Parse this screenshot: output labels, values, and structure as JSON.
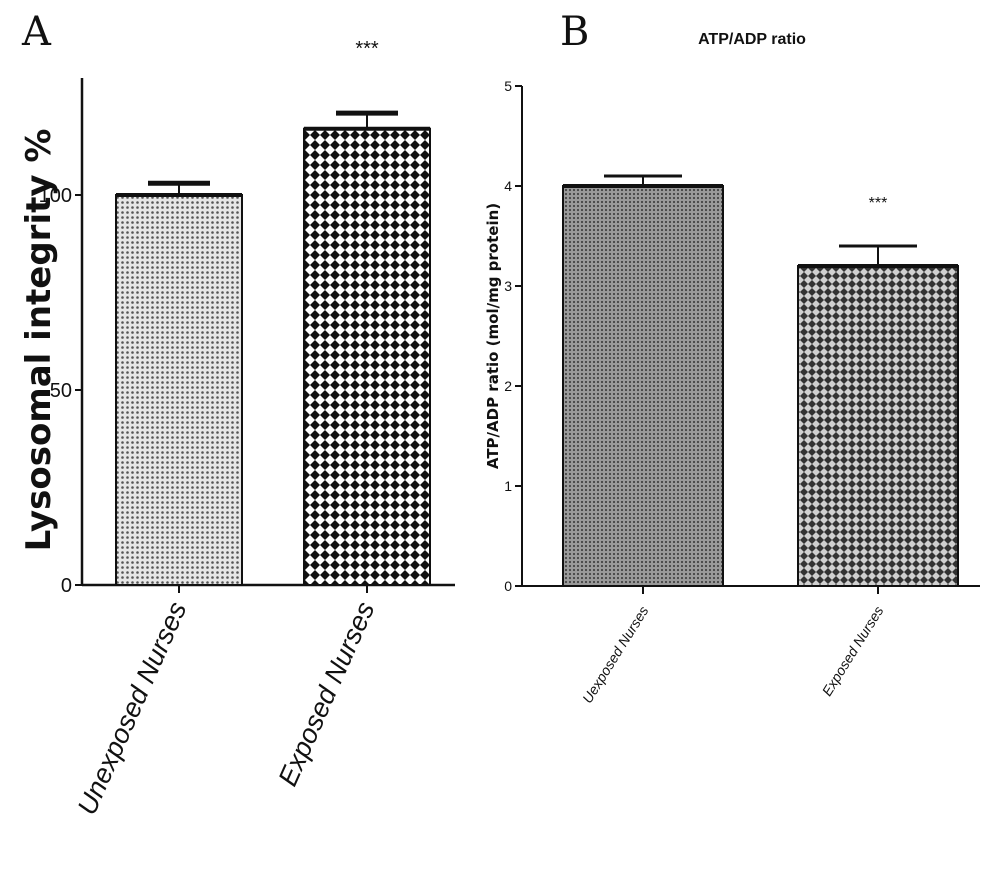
{
  "chart_data": [
    {
      "panel": "A",
      "type": "bar",
      "title": "",
      "ylabel": "Lysosomal integrity %",
      "xlabel": "",
      "categories": [
        "Unexposed Nurses",
        "Exposed Nurses"
      ],
      "values": [
        100,
        117
      ],
      "errors": [
        3,
        4
      ],
      "ylim": [
        0,
        130
      ],
      "yticks": [
        0,
        50,
        100
      ],
      "annotations": [
        "",
        "***"
      ],
      "grid": false,
      "legend": "none"
    },
    {
      "panel": "B",
      "type": "bar",
      "title": "ATP/ADP ratio",
      "ylabel": "ATP/ADP ratio (mol/mg protein)",
      "xlabel": "",
      "categories": [
        "Uexposed Nurses",
        "Exposed Nurses"
      ],
      "values": [
        4.0,
        3.2
      ],
      "errors": [
        0.1,
        0.2
      ],
      "ylim": [
        0,
        5
      ],
      "yticks": [
        0,
        1,
        2,
        3,
        4,
        5
      ],
      "annotations": [
        "",
        "***"
      ],
      "grid": false,
      "legend": "none"
    }
  ],
  "colors": {
    "axis": "#111111",
    "bar_fill_light": "#d8d8d8",
    "bar_fill_dark": "#8c8c8c"
  }
}
